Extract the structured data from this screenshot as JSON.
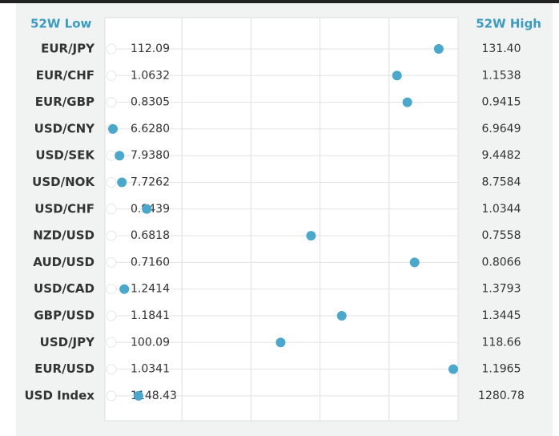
{
  "chart_data": {
    "type": "range_dot",
    "low_header": "52W Low",
    "high_header": "52W High",
    "categories": [
      "EUR/JPY",
      "EUR/CHF",
      "EUR/GBP",
      "USD/CNY",
      "USD/SEK",
      "USD/NOK",
      "USD/CHF",
      "NZD/USD",
      "AUD/USD",
      "USD/CAD",
      "GBP/USD",
      "USD/JPY",
      "EUR/USD",
      "USD Index"
    ],
    "lows": [
      "112.09",
      "1.0632",
      "0.8305",
      "6.6280",
      "7.9380",
      "7.7262",
      "0.9439",
      "0.6818",
      "0.7160",
      "1.2414",
      "1.1841",
      "100.09",
      "1.0341",
      "1148.43"
    ],
    "highs": [
      "131.40",
      "1.1538",
      "0.9415",
      "6.9649",
      "9.4482",
      "8.7584",
      "1.0344",
      "0.7558",
      "0.8066",
      "1.3793",
      "1.3445",
      "118.66",
      "1.1965",
      "1280.78"
    ],
    "values": [
      94.4,
      82.3,
      85.3,
      0,
      1.9,
      2.6,
      9.8,
      57.4,
      87.4,
      3.3,
      66.3,
      48.6,
      98.6,
      7.4
    ],
    "color": "#4aa8cc",
    "xlim": [
      0,
      100
    ],
    "xticks": [
      0,
      20,
      40,
      60,
      80,
      100
    ],
    "grid": true
  }
}
